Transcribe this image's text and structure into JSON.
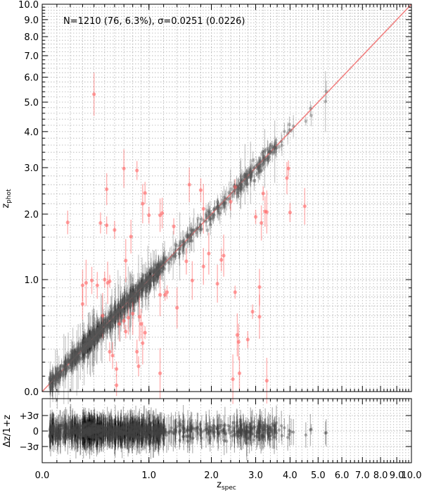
{
  "chart_data": {
    "type": "scatter",
    "main_panel": {
      "annotation": "N=1210 (76,  6.3%), σ=0.0251 (0.0226)",
      "xlabel": "z_spec",
      "ylabel": "z_phot",
      "scale": "log(1+z)",
      "xlim": [
        0.0,
        10.0
      ],
      "ylim": [
        0.0,
        10.0
      ],
      "major_ticks": [
        0.0,
        1.0,
        2.0,
        3.0,
        4.0,
        5.0,
        6.0,
        7.0,
        8.0,
        9.0,
        10.0
      ],
      "x_tick_labels": [
        "0.0",
        "1.0",
        "2.0",
        "3.0",
        "4.0",
        "5.0",
        "6.0",
        "7.0",
        "8.0",
        "9.0",
        "10.0"
      ],
      "y_tick_labels": [
        "0.0",
        "1.0",
        "2.0",
        "3.0",
        "4.0",
        "5.0",
        "6.0",
        "7.0",
        "8.0",
        "9.0",
        "10.0"
      ],
      "grid": true,
      "one_to_one_line_color": "#f08080",
      "good_color": "#000000",
      "outlier_color": "#ff6666",
      "outliers": [
        [
          0.4,
          5.3
        ],
        [
          0.18,
          1.85
        ],
        [
          0.3,
          0.93
        ],
        [
          0.33,
          0.96
        ],
        [
          0.38,
          0.99
        ],
        [
          0.43,
          0.93
        ],
        [
          0.5,
          1.0
        ],
        [
          0.53,
          0.96
        ],
        [
          0.55,
          0.98
        ],
        [
          0.3,
          0.72
        ],
        [
          0.46,
          1.84
        ],
        [
          0.52,
          2.5
        ],
        [
          0.52,
          1.8
        ],
        [
          0.6,
          1.72
        ],
        [
          0.7,
          2.98
        ],
        [
          0.72,
          1.25
        ],
        [
          0.78,
          1.61
        ],
        [
          0.85,
          2.93
        ],
        [
          0.92,
          2.2
        ],
        [
          0.95,
          2.42
        ],
        [
          1.0,
          1.98
        ],
        [
          1.15,
          1.98
        ],
        [
          1.18,
          2.02
        ],
        [
          1.22,
          0.82
        ],
        [
          1.35,
          1.78
        ],
        [
          1.6,
          2.6
        ],
        [
          1.8,
          2.48
        ],
        [
          1.85,
          2.1
        ],
        [
          1.85,
          1.17
        ],
        [
          1.95,
          1.35
        ],
        [
          2.2,
          1.26
        ],
        [
          2.25,
          1.32
        ],
        [
          2.5,
          2.55
        ],
        [
          2.55,
          0.42
        ],
        [
          2.58,
          0.36
        ],
        [
          3.0,
          1.95
        ],
        [
          3.15,
          1.84
        ],
        [
          3.2,
          2.41
        ],
        [
          3.25,
          2.05
        ],
        [
          3.3,
          2.04
        ],
        [
          3.9,
          2.75
        ],
        [
          3.95,
          2.98
        ],
        [
          4.0,
          2.03
        ],
        [
          4.5,
          2.15
        ],
        [
          2.12,
          0.95
        ],
        [
          3.1,
          0.91
        ],
        [
          2.8,
          0.38
        ],
        [
          3.1,
          0.59
        ],
        [
          2.5,
          0.85
        ],
        [
          0.88,
          0.59
        ],
        [
          0.9,
          0.52
        ],
        [
          0.95,
          0.44
        ],
        [
          0.92,
          0.35
        ],
        [
          0.85,
          0.28
        ],
        [
          0.8,
          0.62
        ],
        [
          0.75,
          0.58
        ],
        [
          0.7,
          0.55
        ],
        [
          0.65,
          0.52
        ],
        [
          0.58,
          0.25
        ],
        [
          0.62,
          0.15
        ],
        [
          1.4,
          0.68
        ],
        [
          1.25,
          0.85
        ],
        [
          1.15,
          0.82
        ],
        [
          0.72,
          0.45
        ],
        [
          1.55,
          1.24
        ],
        [
          1.65,
          0.99
        ],
        [
          0.48,
          0.6
        ],
        [
          0.55,
          0.28
        ],
        [
          2.6,
          0.12
        ],
        [
          2.45,
          0.08
        ],
        [
          3.3,
          0.07
        ],
        [
          2.92,
          0.64
        ],
        [
          0.62,
          0.04
        ],
        [
          0.87,
          0.17
        ],
        [
          1.15,
          0.12
        ],
        [
          2.4,
          2.24
        ]
      ]
    },
    "residual_panel": {
      "ylabel": "Δz/1+z",
      "y_tick_labels": [
        "+3σ",
        "0",
        "−3σ"
      ]
    }
  }
}
